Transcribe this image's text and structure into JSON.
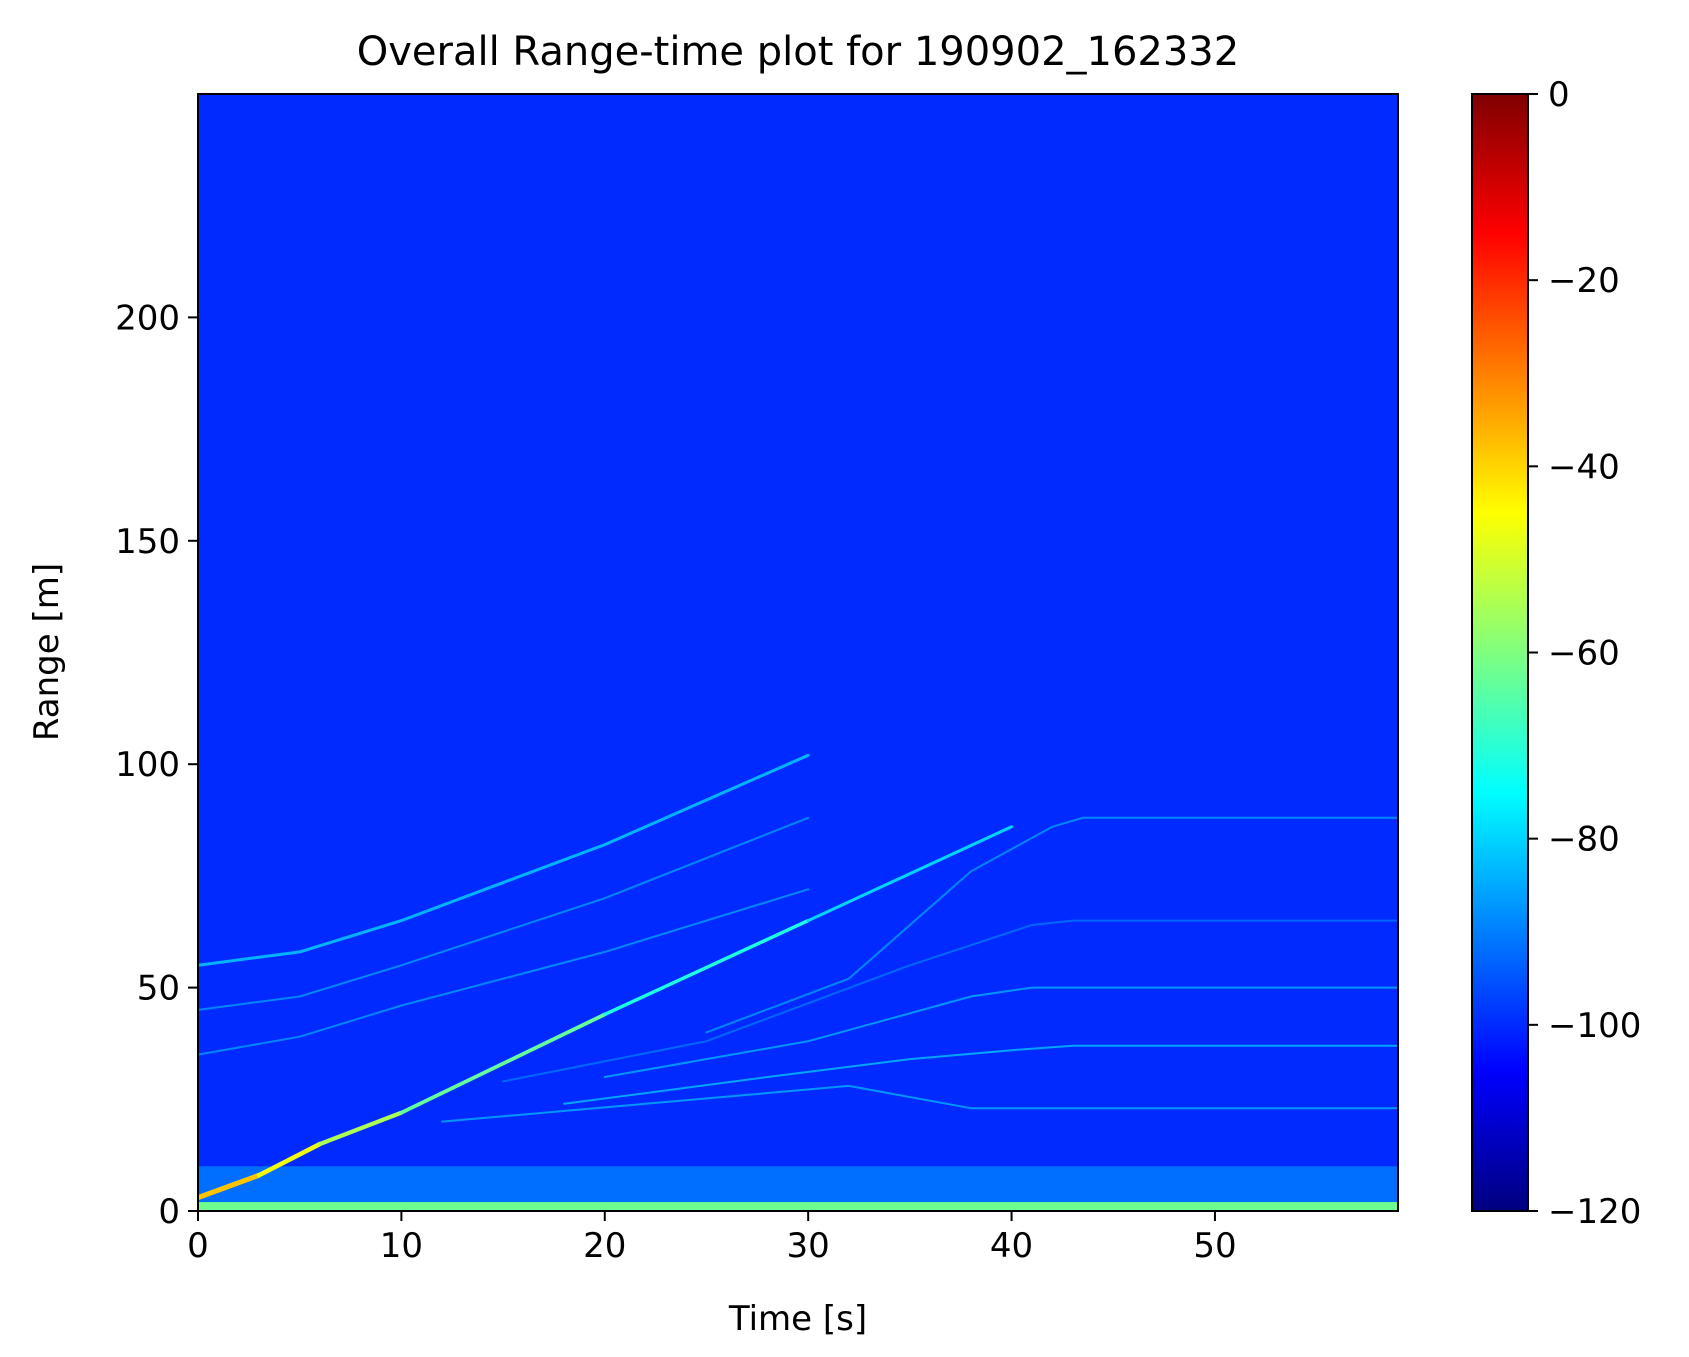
{
  "chart_data": {
    "type": "heatmap",
    "title": "Overall Range-time plot for 190902_162332",
    "xlabel": "Time [s]",
    "ylabel": "Range [m]",
    "xlim": [
      0,
      59
    ],
    "ylim": [
      0,
      250
    ],
    "x_ticks": [
      "0",
      "10",
      "20",
      "30",
      "40",
      "50"
    ],
    "x_tick_values": [
      0,
      10,
      20,
      30,
      40,
      50
    ],
    "y_ticks": [
      "0",
      "50",
      "100",
      "150",
      "200"
    ],
    "y_tick_values": [
      0,
      50,
      100,
      150,
      200
    ],
    "grid": false,
    "colormap": "jet",
    "background_level": -100,
    "colorbar": {
      "range": [
        -120,
        0
      ],
      "ticks": [
        "0",
        "−20",
        "−40",
        "−60",
        "−80",
        "−100",
        "−120"
      ],
      "tick_values": [
        0,
        -20,
        -40,
        -60,
        -80,
        -100,
        -120
      ],
      "stops": [
        "#00007f",
        "#0000ff",
        "#007fff",
        "#00ffff",
        "#7fff7f",
        "#ffff00",
        "#ff7f00",
        "#ff0000",
        "#7f0000"
      ]
    },
    "features": {
      "near_clutter_band": {
        "range_max": 10,
        "level": -92
      },
      "ground_band": {
        "range_max": 2,
        "level": -62
      },
      "main_target_track": {
        "t": [
          0,
          3,
          6,
          10,
          20,
          30,
          40
        ],
        "range": [
          3,
          8,
          15,
          22,
          44,
          65,
          86
        ],
        "level_start": -38,
        "level_end": -80
      },
      "track_upper": {
        "t": [
          0,
          5,
          10,
          20,
          30
        ],
        "range": [
          55,
          58,
          65,
          82,
          102
        ],
        "level": -82
      },
      "track_mid": {
        "t": [
          0,
          5,
          10,
          20,
          30
        ],
        "range": [
          45,
          48,
          55,
          70,
          88
        ],
        "level": -88
      },
      "track_low": {
        "t": [
          0,
          5,
          10,
          20,
          30
        ],
        "range": [
          35,
          39,
          46,
          58,
          72
        ],
        "level": -88
      },
      "approach_tracks": [
        {
          "t": [
            25,
            32,
            38,
            42,
            43.5,
            59
          ],
          "range": [
            40,
            52,
            76,
            86,
            88,
            88
          ],
          "level": -88
        },
        {
          "t": [
            15,
            25,
            35,
            41,
            43,
            59
          ],
          "range": [
            29,
            38,
            55,
            64,
            65,
            65
          ],
          "level": -92
        },
        {
          "t": [
            20,
            30,
            38,
            41,
            43,
            59
          ],
          "range": [
            30,
            38,
            48,
            50,
            50,
            50
          ],
          "level": -86
        },
        {
          "t": [
            18,
            28,
            35,
            40,
            43,
            59
          ],
          "range": [
            24,
            30,
            34,
            36,
            37,
            37
          ],
          "level": -84
        },
        {
          "t": [
            12,
            22,
            32,
            38,
            43,
            59
          ],
          "range": [
            20,
            24,
            28,
            23,
            23,
            23
          ],
          "level": -86
        }
      ]
    }
  }
}
